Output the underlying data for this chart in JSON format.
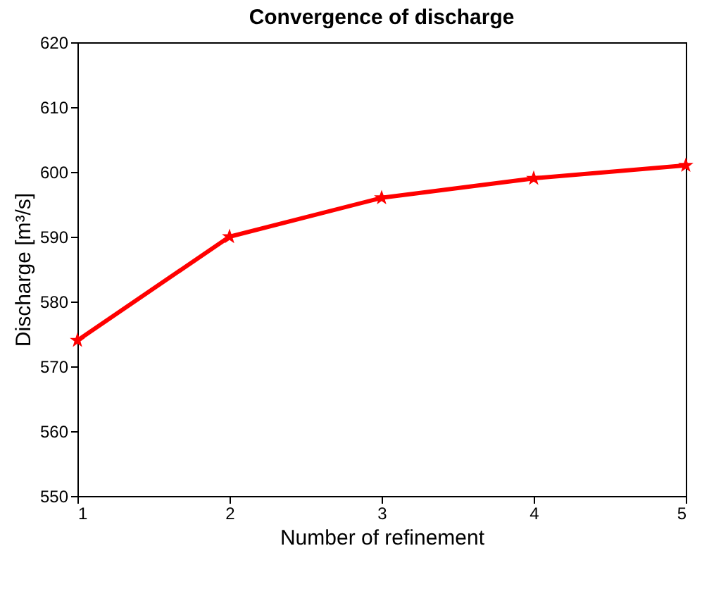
{
  "chart_data": {
    "type": "line",
    "title": "Convergence of discharge",
    "xlabel": "Number of refinement",
    "ylabel": "Discharge [m³/s]",
    "x": [
      1,
      2,
      3,
      4,
      5
    ],
    "series": [
      {
        "color": "#ff0000",
        "values": [
          574,
          590,
          596,
          599,
          601
        ]
      }
    ],
    "xlim": [
      1,
      5
    ],
    "xticks": [
      1,
      2,
      3,
      4,
      5
    ],
    "ylim": [
      550,
      620
    ],
    "yticks": [
      550,
      560,
      570,
      580,
      590,
      600,
      610,
      620
    ],
    "grid": false,
    "marker": "star",
    "line_style": "solid"
  }
}
